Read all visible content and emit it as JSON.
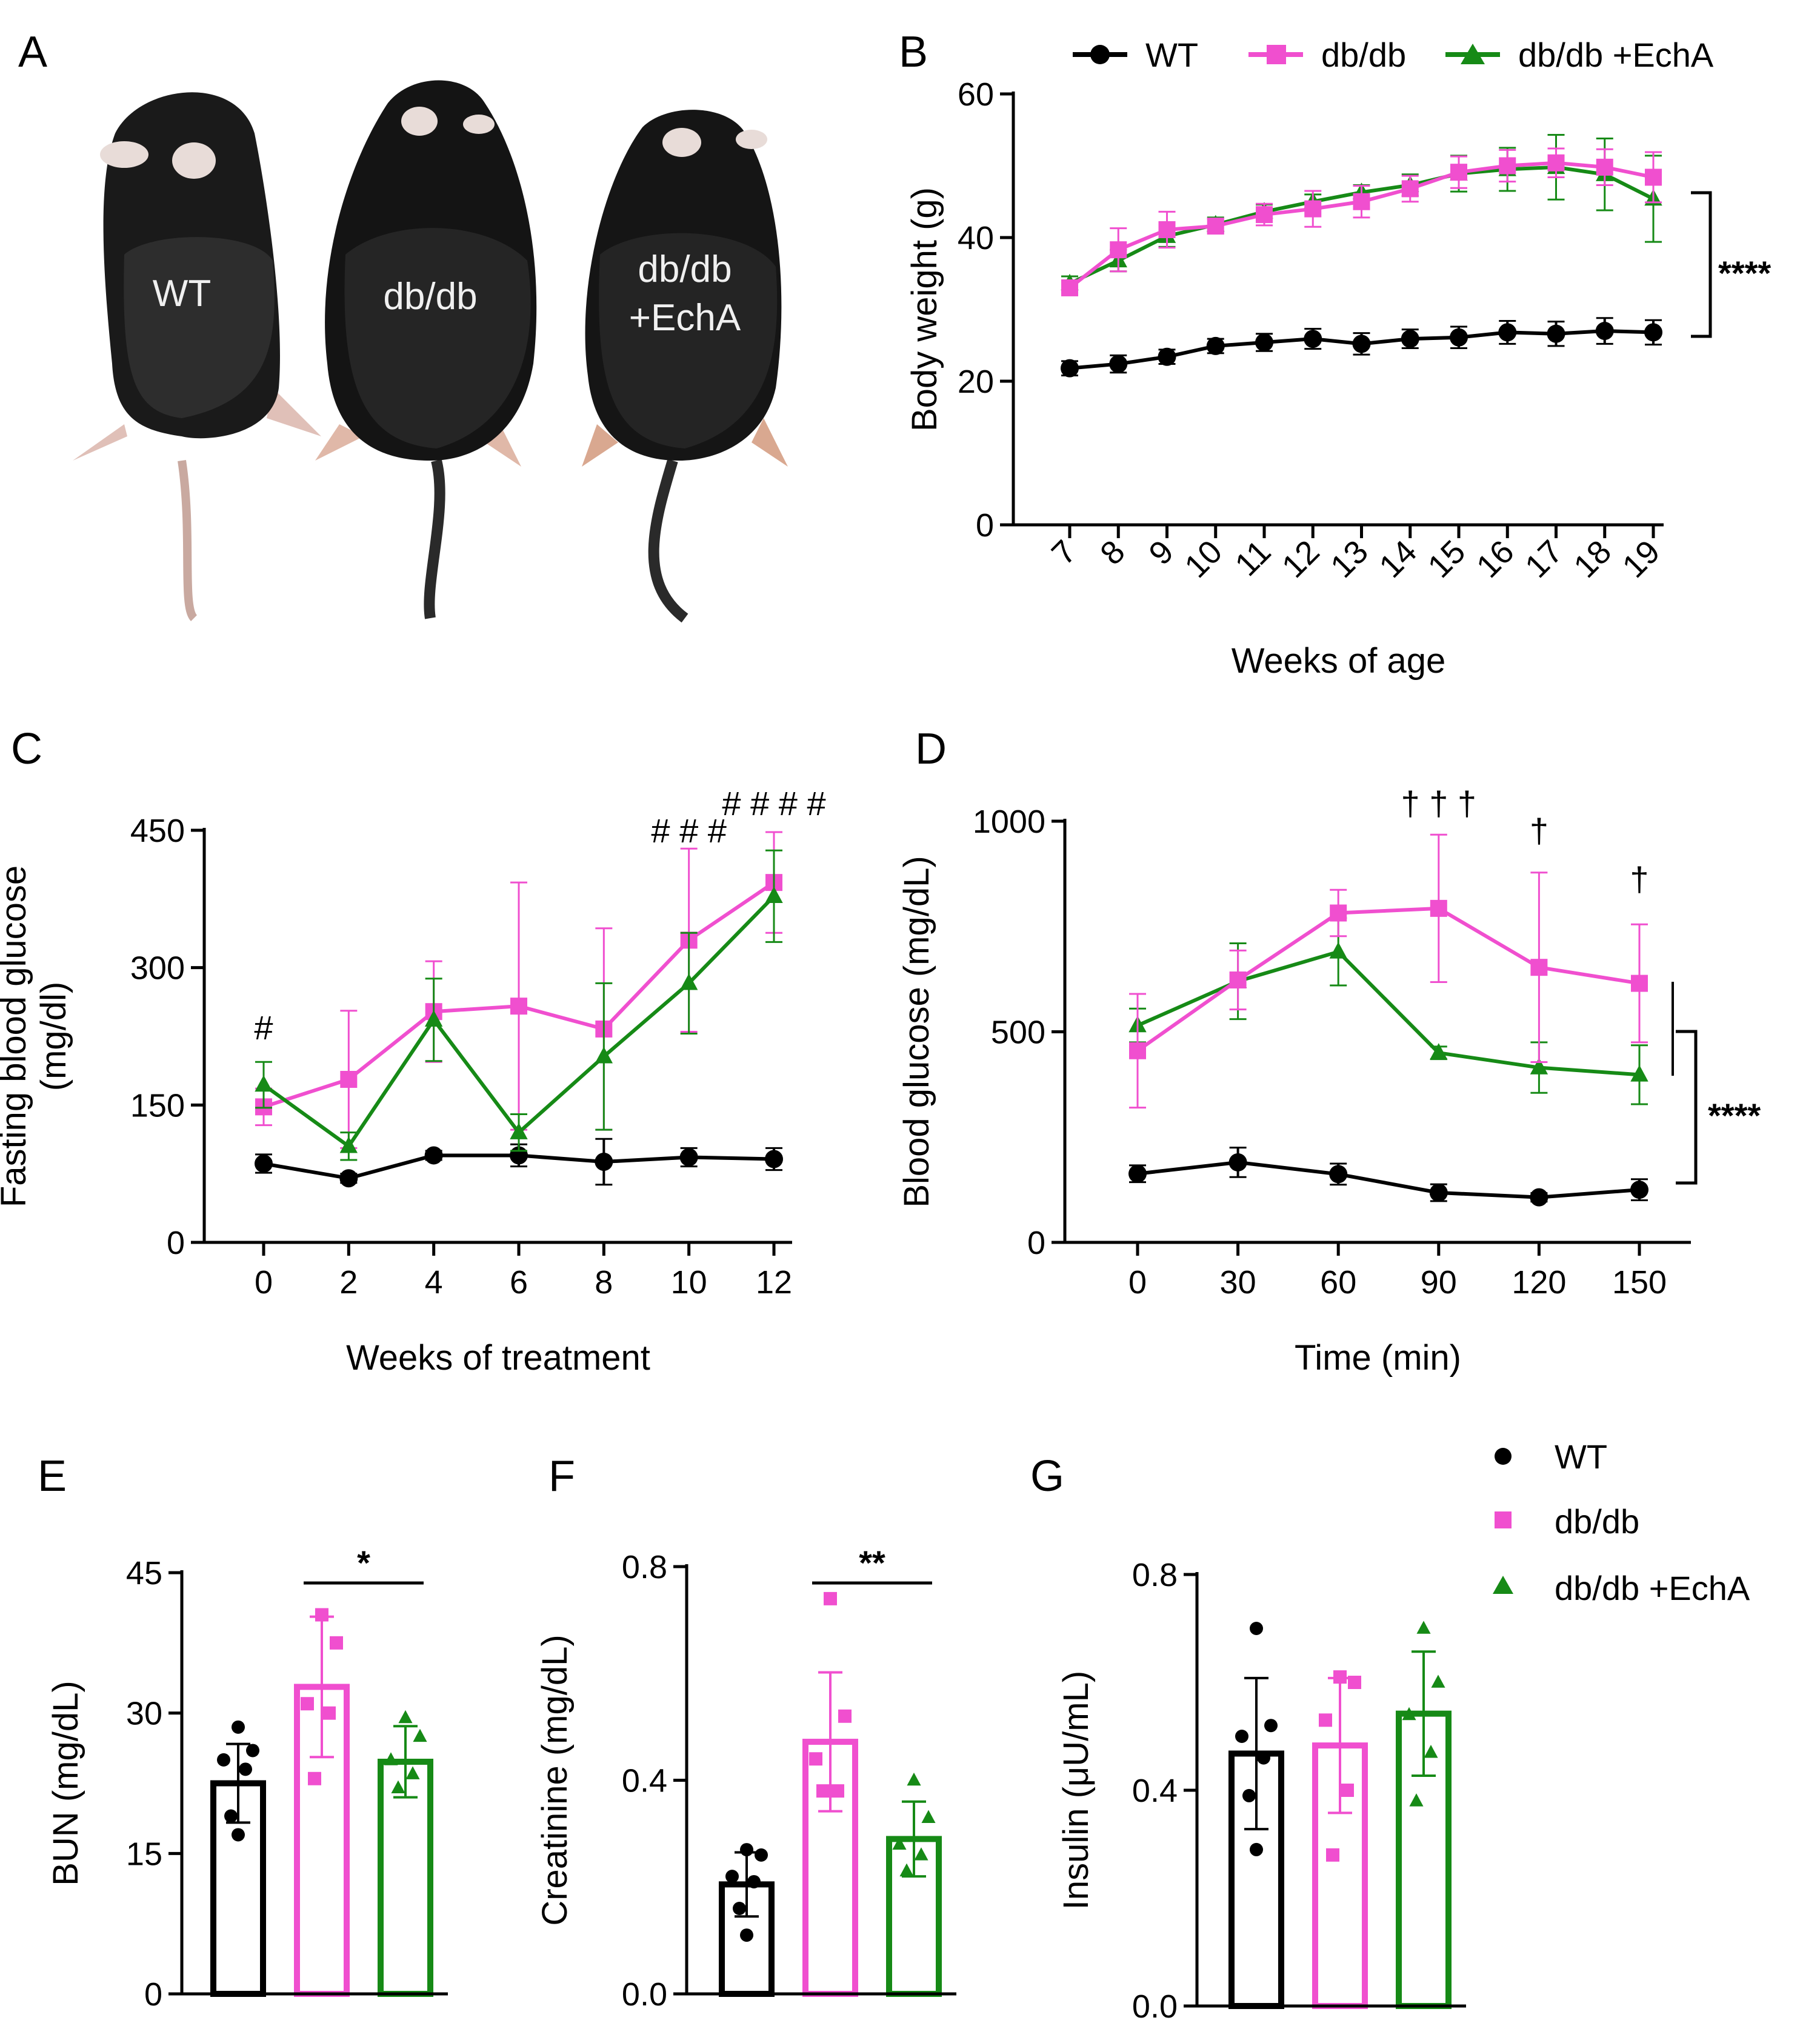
{
  "figure": {
    "panel_letters": [
      "A",
      "B",
      "C",
      "D",
      "E",
      "F",
      "G"
    ],
    "mice_labels": [
      "WT",
      "db/db",
      "db/db +EchA"
    ],
    "series_names": [
      "WT",
      "db/db",
      "db/db +EchA"
    ],
    "colors": {
      "WT": "#000000",
      "dbdb": "#f04fcf",
      "echa": "#168a16"
    }
  },
  "chart_data": [
    {
      "panel": "B",
      "type": "line",
      "xlabel": "Weeks of age",
      "ylabel": "Body weight (g)",
      "categories": [
        "7",
        "8",
        "9",
        "10",
        "11",
        "12",
        "13",
        "14",
        "15",
        "16",
        "17",
        "18",
        "19"
      ],
      "ylim": [
        0,
        60
      ],
      "yticks": [
        "0",
        "20",
        "40",
        "60"
      ],
      "series": [
        {
          "name": "WT",
          "values": [
            21.8,
            22.4,
            23.4,
            24.9,
            25.4,
            25.9,
            25.2,
            25.9,
            26.1,
            26.8,
            26.6,
            27.0,
            26.8
          ],
          "err": [
            1,
            1.2,
            1,
            1,
            1.2,
            1.4,
            1.5,
            1.3,
            1.5,
            1.6,
            1.7,
            1.8,
            1.7
          ]
        },
        {
          "name": "db/db",
          "values": [
            33.0,
            38.3,
            41.1,
            41.6,
            43.2,
            44.0,
            45.0,
            46.8,
            49.1,
            50.0,
            50.4,
            49.8,
            48.4
          ],
          "err": [
            1,
            3,
            2.5,
            1,
            1.5,
            2.5,
            2.2,
            1.8,
            2.2,
            2.2,
            2,
            2.5,
            3.5
          ]
        },
        {
          "name": "db/db +EchA",
          "values": [
            33.6,
            36.8,
            40.2,
            41.8,
            43.6,
            45.0,
            46.3,
            47.3,
            48.9,
            49.5,
            49.8,
            48.8,
            45.4
          ],
          "err": [
            1,
            1.5,
            1.5,
            1,
            1,
            1,
            1,
            1.5,
            2.5,
            3,
            4.5,
            5,
            6
          ]
        }
      ],
      "annotations": [
        "****"
      ]
    },
    {
      "panel": "C",
      "type": "line",
      "xlabel": "Weeks of treatment",
      "ylabel": [
        "Fasting blood glucose",
        "(mg/dl)"
      ],
      "categories": [
        "0",
        "2",
        "4",
        "6",
        "8",
        "10",
        "12"
      ],
      "ylim": [
        0,
        450
      ],
      "yticks": [
        "0",
        "150",
        "300",
        "450"
      ],
      "series": [
        {
          "name": "WT",
          "values": [
            86,
            70,
            95,
            95,
            88,
            93,
            91
          ],
          "err": [
            10,
            5,
            5,
            12,
            25,
            10,
            12
          ]
        },
        {
          "name": "db/db",
          "values": [
            148,
            178,
            252,
            258,
            233,
            330,
            393
          ],
          "err": [
            20,
            75,
            55,
            135,
            110,
            100,
            55
          ]
        },
        {
          "name": "db/db +EchA",
          "values": [
            172,
            105,
            243,
            120,
            203,
            283,
            378
          ],
          "err": [
            25,
            15,
            45,
            20,
            80,
            55,
            50
          ]
        }
      ],
      "annotations": [
        {
          "text": "#",
          "x": "0"
        },
        {
          "text": "# # #",
          "x": "10"
        },
        {
          "text": "# # # #",
          "x": "12"
        }
      ]
    },
    {
      "panel": "D",
      "type": "line",
      "xlabel": "Time (min)",
      "ylabel": "Blood glucose (mg/dL)",
      "categories": [
        "0",
        "30",
        "60",
        "90",
        "120",
        "150"
      ],
      "ylim": [
        0,
        1000
      ],
      "yticks": [
        "0",
        "500",
        "1000"
      ],
      "series": [
        {
          "name": "WT",
          "values": [
            163,
            190,
            162,
            118,
            107,
            125
          ],
          "err": [
            20,
            35,
            25,
            20,
            10,
            25
          ]
        },
        {
          "name": "db/db",
          "values": [
            455,
            623,
            782,
            793,
            653,
            615
          ],
          "err": [
            135,
            70,
            55,
            175,
            225,
            140
          ]
        },
        {
          "name": "db/db +EchA",
          "values": [
            515,
            620,
            690,
            450,
            415,
            398
          ],
          "err": [
            40,
            90,
            80,
            15,
            60,
            70
          ]
        }
      ],
      "annotations": [
        {
          "text": "† † †",
          "x": "90"
        },
        {
          "text": "†",
          "x": "120"
        },
        {
          "text": "†",
          "x": "150"
        },
        {
          "text": "****"
        }
      ]
    },
    {
      "panel": "E",
      "type": "bar",
      "ylabel": "BUN (mg/dL)",
      "categories": [
        "WT",
        "db/db",
        "db/db +EchA"
      ],
      "values": [
        22.5,
        32.8,
        24.8
      ],
      "err": [
        4.2,
        7.5,
        3.8
      ],
      "points": [
        [
          28.5,
          26,
          25,
          24,
          19,
          17
        ],
        [
          40.5,
          37.5,
          31,
          30,
          23
        ],
        [
          29.5,
          27.5,
          25,
          23.5,
          22
        ]
      ],
      "ylim": [
        0,
        45
      ],
      "yticks": [
        "0",
        "15",
        "30",
        "45"
      ],
      "annotations": [
        "*"
      ]
    },
    {
      "panel": "F",
      "type": "bar",
      "ylabel": "Creatinine (mg/dL)",
      "categories": [
        "WT",
        "db/db",
        "db/db +EchA"
      ],
      "values": [
        0.205,
        0.472,
        0.29
      ],
      "err": [
        0.06,
        0.13,
        0.07
      ],
      "points": [
        [
          0.27,
          0.26,
          0.22,
          0.21,
          0.16,
          0.11
        ],
        [
          0.74,
          0.52,
          0.44,
          0.38,
          0.38
        ],
        [
          0.4,
          0.33,
          0.28,
          0.26,
          0.23
        ]
      ],
      "ylim": [
        0,
        0.8
      ],
      "yticks": [
        "0.0",
        "0.4",
        "0.8"
      ],
      "annotations": [
        "**"
      ]
    },
    {
      "panel": "G",
      "type": "bar",
      "ylabel": "Insulin (μU/mL)",
      "categories": [
        "WT",
        "db/db",
        "db/db +EchA"
      ],
      "values": [
        0.468,
        0.483,
        0.542
      ],
      "err": [
        0.14,
        0.125,
        0.115
      ],
      "points": [
        [
          0.7,
          0.52,
          0.5,
          0.46,
          0.39,
          0.29
        ],
        [
          0.61,
          0.6,
          0.53,
          0.4,
          0.28
        ],
        [
          0.7,
          0.6,
          0.54,
          0.47,
          0.38
        ]
      ],
      "ylim": [
        0,
        0.8
      ],
      "yticks": [
        "0.0",
        "0.4",
        "0.8"
      ]
    }
  ]
}
